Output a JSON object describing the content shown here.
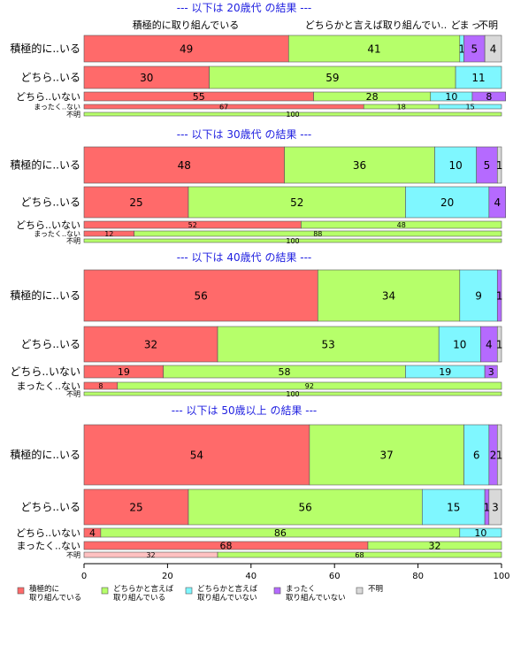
{
  "chart_data": {
    "type": "bar",
    "orientation": "horizontal-stacked-100",
    "colors": [
      "#ff6a6a",
      "#b6ff6a",
      "#7ff7ff",
      "#b56aff",
      "#d9d9d9"
    ],
    "top_category_labels": [
      "積極的に取り組んでいる",
      "どちらかと言えば取り組んでい..",
      "ど",
      "ま",
      "っ",
      "不明"
    ],
    "legend": [
      {
        "line1": "積極的に",
        "line2": "取り組んでいる"
      },
      {
        "line1": "どちらかと言えば",
        "line2": "取り組んでいる"
      },
      {
        "line1": "どちらかと言えば",
        "line2": "取り組んでいない"
      },
      {
        "line1": "まったく",
        "line2": "取り組んでいない"
      },
      {
        "line1": "不明",
        "line2": ""
      }
    ],
    "x_ticks": [
      "0",
      "20",
      "40",
      "60",
      "80",
      "100"
    ],
    "xlim": [
      0,
      100
    ],
    "panels": [
      {
        "title": "--- 以下は 20歳代 の結果 ---",
        "rows": [
          {
            "label": "積極的に..いる",
            "values": [
              49,
              41,
              1,
              5,
              4
            ],
            "labels": [
              "49",
              "41",
              "1",
              "5",
              "4"
            ]
          },
          {
            "label": "どちら..いる",
            "values": [
              30,
              59,
              11,
              0,
              0
            ],
            "labels": [
              "30",
              "59",
              "11",
              "",
              ""
            ]
          },
          {
            "label": "どちら..いない",
            "values": [
              55,
              28,
              10,
              8,
              0
            ],
            "labels": [
              "55",
              "28",
              "10",
              "8",
              ""
            ]
          },
          {
            "label": "まったく..ない",
            "values": [
              67,
              18,
              15,
              0,
              0
            ],
            "labels": [
              "67",
              "18",
              "15",
              "",
              ""
            ]
          },
          {
            "label": "不明",
            "values": [
              0,
              100,
              0,
              0,
              0
            ],
            "labels": [
              "",
              "100",
              "",
              "",
              ""
            ]
          }
        ]
      },
      {
        "title": "--- 以下は 30歳代 の結果 ---",
        "rows": [
          {
            "label": "積極的に..いる",
            "values": [
              48,
              36,
              10,
              5,
              1
            ],
            "labels": [
              "48",
              "36",
              "10",
              "5",
              "1"
            ]
          },
          {
            "label": "どちら..いる",
            "values": [
              25,
              52,
              20,
              4,
              0
            ],
            "labels": [
              "25",
              "52",
              "20",
              "4",
              ""
            ]
          },
          {
            "label": "どちら..いない",
            "values": [
              52,
              48,
              0,
              0,
              0
            ],
            "labels": [
              "52",
              "48",
              "",
              "",
              ""
            ]
          },
          {
            "label": "まったく..ない",
            "values": [
              12,
              88,
              0,
              0,
              0
            ],
            "labels": [
              "12",
              "88",
              "",
              "",
              ""
            ]
          },
          {
            "label": "不明",
            "values": [
              0,
              100,
              0,
              0,
              0
            ],
            "labels": [
              "",
              "100",
              "",
              "",
              ""
            ]
          }
        ]
      },
      {
        "title": "--- 以下は 40歳代 の結果 ---",
        "rows": [
          {
            "label": "積極的に..いる",
            "values": [
              56,
              34,
              9,
              1,
              0
            ],
            "labels": [
              "56",
              "34",
              "9",
              "1",
              ""
            ]
          },
          {
            "label": "どちら..いる",
            "values": [
              32,
              53,
              10,
              4,
              1
            ],
            "labels": [
              "32",
              "53",
              "10",
              "4",
              "1"
            ]
          },
          {
            "label": "どちら..いない",
            "values": [
              19,
              58,
              19,
              3,
              0
            ],
            "labels": [
              "19",
              "58",
              "19",
              "3",
              ""
            ]
          },
          {
            "label": "まったく..ない",
            "values": [
              8,
              92,
              0,
              0,
              0
            ],
            "labels": [
              "8",
              "92",
              "",
              "",
              ""
            ]
          },
          {
            "label": "不明",
            "values": [
              0,
              100,
              0,
              0,
              0
            ],
            "labels": [
              "",
              "100",
              "",
              "",
              ""
            ]
          }
        ]
      },
      {
        "title": "--- 以下は 50歳以上 の結果 ---",
        "rows": [
          {
            "label": "積極的に..いる",
            "values": [
              54,
              37,
              6,
              2,
              1
            ],
            "labels": [
              "54",
              "37",
              "6",
              "2",
              "1"
            ]
          },
          {
            "label": "どちら..いる",
            "values": [
              25,
              56,
              15,
              1,
              3
            ],
            "labels": [
              "25",
              "56",
              "15",
              "1",
              "3"
            ]
          },
          {
            "label": "どちら..いない",
            "values": [
              4,
              86,
              10,
              0,
              0
            ],
            "labels": [
              "4",
              "86",
              "10",
              "",
              ""
            ]
          },
          {
            "label": "まったく..ない",
            "values": [
              68,
              32,
              0,
              0,
              0
            ],
            "labels": [
              "68",
              "32",
              "",
              "",
              ""
            ]
          },
          {
            "label": "不明",
            "values": [
              32,
              68,
              0,
              0,
              0
            ],
            "labels": [
              "32",
              "68",
              "",
              "",
              ""
            ]
          }
        ]
      }
    ]
  }
}
